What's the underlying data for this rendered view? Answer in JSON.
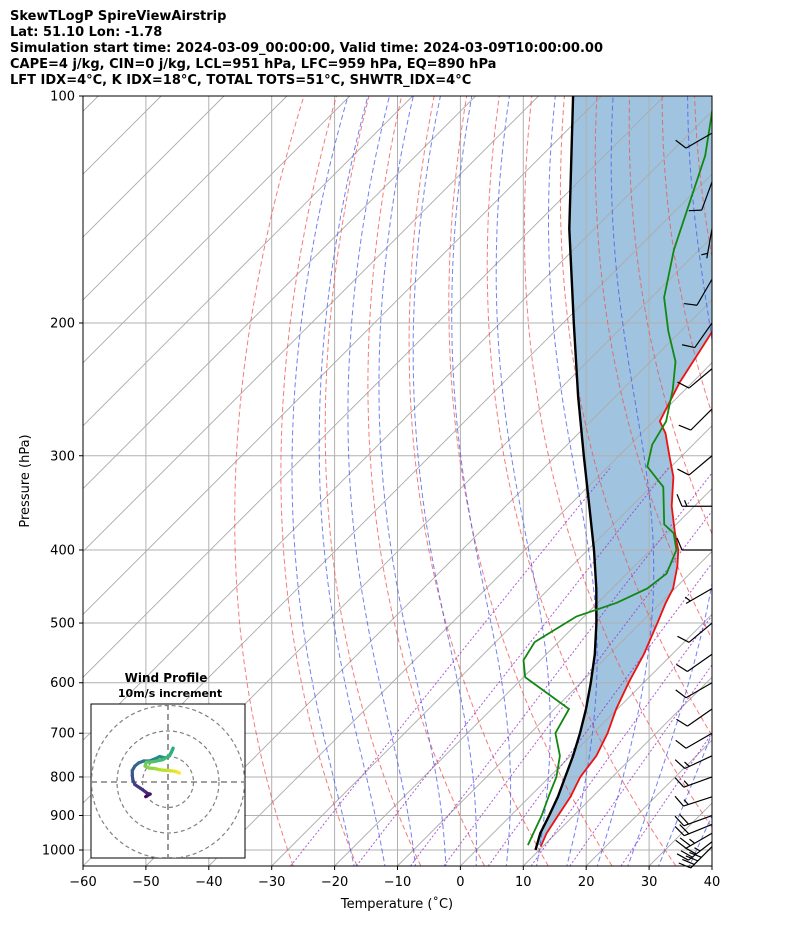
{
  "header": {
    "title_lines": [
      "SkewTLogP SpireViewAirstrip",
      "Lat: 51.10   Lon: -1.78",
      "Simulation start time: 2024-03-09_00:00:00, Valid time: 2024-03-09T10:00:00.00",
      "CAPE=4 j/kg, CIN=0 j/kg, LCL=951 hPa, LFC=959 hPa, EQ=890 hPa",
      "LFT IDX=4°C, K IDX=18°C, TOTAL TOTS=51°C, SHWTR_IDX=4°C"
    ]
  },
  "colors": {
    "temperature": "#ee1111",
    "dewpoint": "#118811",
    "parcel": "#000000",
    "cape_fill": "#a0c4df",
    "dry_adiabat": "#f05050",
    "moist_adiabat": "#4455ee",
    "mixing_ratio": "#9933cc",
    "isotherm": "#aaaaaa",
    "grid": "#b0b0b0",
    "hodo_ring": "#808080"
  },
  "chart_data": [
    {
      "type": "skew-t",
      "xlabel": "Temperature (˚C)",
      "ylabel": "Pressure (hPa)",
      "xlim": [
        -60,
        40
      ],
      "ylim": [
        1050,
        100
      ],
      "y_scale": "log",
      "x_ticks": [
        -60,
        -50,
        -40,
        -30,
        -20,
        -10,
        0,
        10,
        20,
        30,
        40
      ],
      "x_tick_labels": [
        "−60",
        "−50",
        "−40",
        "−30",
        "−20",
        "−10",
        "0",
        "10",
        "20",
        "30",
        "40"
      ],
      "y_ticks": [
        1000,
        900,
        800,
        700,
        600,
        500,
        400,
        300,
        200,
        100
      ],
      "y_tick_labels": [
        "1000",
        "900",
        "800",
        "700",
        "600",
        "500",
        "400",
        "300",
        "200",
        "100"
      ],
      "grid": true,
      "series": [
        {
          "key": "temperature",
          "pressure": [
            990,
            950,
            900,
            850,
            800,
            750,
            700,
            650,
            600,
            550,
            500,
            470,
            450,
            420,
            400,
            380,
            350,
            320,
            300,
            280,
            270,
            240,
            210,
            190,
            170,
            150,
            130,
            115,
            100
          ],
          "temp": [
            9.7,
            8.5,
            7.5,
            6.5,
            4.9,
            4.1,
            2.3,
            -0.2,
            -2.4,
            -4.5,
            -7.3,
            -9.2,
            -10.3,
            -13.2,
            -15.6,
            -18.8,
            -23.6,
            -28.0,
            -32.0,
            -36.2,
            -39.0,
            -42.0,
            -44.5,
            -46.5,
            -48.5,
            -50.5,
            -51.5,
            -52.0,
            -52.0
          ]
        },
        {
          "key": "dewpoint",
          "pressure": [
            985,
            950,
            900,
            850,
            800,
            750,
            700,
            650,
            590,
            560,
            530,
            490,
            470,
            450,
            430,
            400,
            380,
            370,
            330,
            310,
            290,
            270,
            245,
            225,
            205,
            185,
            160,
            120,
            100
          ],
          "temp": [
            7.4,
            6.4,
            4.9,
            3.0,
            1.1,
            -1.7,
            -6.0,
            -7.7,
            -19.7,
            -22.7,
            -23.8,
            -21.2,
            -17.0,
            -14.4,
            -13.7,
            -15.9,
            -19.0,
            -21.9,
            -28.0,
            -33.8,
            -36.5,
            -38.0,
            -42.0,
            -46.0,
            -52.0,
            -58.0,
            -64.0,
            -74.0,
            -82.0
          ]
        },
        {
          "key": "parcel",
          "pressure": [
            1000,
            950,
            900,
            850,
            800,
            750,
            700,
            650,
            600,
            550,
            500,
            450,
            400,
            350,
            300,
            250,
            200,
            150,
            100
          ],
          "temp": [
            9.4,
            7.5,
            6.1,
            4.5,
            2.5,
            0.4,
            -2.1,
            -5.0,
            -8.4,
            -12.3,
            -17.0,
            -22.5,
            -29.0,
            -36.7,
            -45.6,
            -56.0,
            -68.3,
            -84.0,
            -104.5
          ]
        }
      ],
      "wind_barbs": [
        {
          "p": 990,
          "speed": 40,
          "dir": 225
        },
        {
          "p": 975,
          "speed": 35,
          "dir": 232
        },
        {
          "p": 950,
          "speed": 25,
          "dir": 240
        },
        {
          "p": 925,
          "speed": 20,
          "dir": 248
        },
        {
          "p": 900,
          "speed": 20,
          "dir": 250
        },
        {
          "p": 850,
          "speed": 15,
          "dir": 252
        },
        {
          "p": 800,
          "speed": 15,
          "dir": 250
        },
        {
          "p": 750,
          "speed": 15,
          "dir": 245
        },
        {
          "p": 700,
          "speed": 10,
          "dir": 240
        },
        {
          "p": 650,
          "speed": 10,
          "dir": 235
        },
        {
          "p": 600,
          "speed": 10,
          "dir": 240
        },
        {
          "p": 550,
          "speed": 10,
          "dir": 235
        },
        {
          "p": 500,
          "speed": 10,
          "dir": 230
        },
        {
          "p": 450,
          "speed": 5,
          "dir": 240
        },
        {
          "p": 400,
          "speed": 10,
          "dir": 270
        },
        {
          "p": 350,
          "speed": 15,
          "dir": 270
        },
        {
          "p": 300,
          "speed": 10,
          "dir": 230
        },
        {
          "p": 260,
          "speed": 10,
          "dir": 225
        },
        {
          "p": 230,
          "speed": 10,
          "dir": 230
        },
        {
          "p": 200,
          "speed": 10,
          "dir": 215
        },
        {
          "p": 175,
          "speed": 10,
          "dir": 210
        },
        {
          "p": 150,
          "speed": 5,
          "dir": 190
        },
        {
          "p": 130,
          "speed": 10,
          "dir": 200
        },
        {
          "p": 112,
          "speed": 10,
          "dir": 240
        }
      ]
    },
    {
      "type": "hodograph",
      "title": "Wind Profile",
      "subtitle": "10m/s increment",
      "colormap": "viridis",
      "points": [
        [
          -3.5,
          -2.3
        ],
        [
          -3.2,
          -2.1
        ],
        [
          -2.8,
          -1.9
        ],
        [
          -3.2,
          -1.8
        ],
        [
          -3.6,
          -1.5
        ],
        [
          -4.3,
          -1.0
        ],
        [
          -5.2,
          -0.4
        ],
        [
          -5.5,
          0.3
        ],
        [
          -5.6,
          1.0
        ],
        [
          -5.6,
          1.8
        ],
        [
          -5.2,
          2.5
        ],
        [
          -4.6,
          3.0
        ],
        [
          -3.8,
          3.3
        ],
        [
          -2.9,
          3.3
        ],
        [
          -2.1,
          3.6
        ],
        [
          -1.3,
          4.0
        ],
        [
          -0.5,
          3.8
        ],
        [
          0.0,
          3.9
        ],
        [
          0.5,
          4.6
        ],
        [
          0.8,
          5.3
        ],
        [
          0.3,
          4.2
        ],
        [
          -0.8,
          3.5
        ],
        [
          -2.2,
          3.2
        ],
        [
          -3.4,
          3.1
        ],
        [
          -3.6,
          2.5
        ],
        [
          -3.0,
          2.2
        ],
        [
          -2.0,
          2.1
        ],
        [
          -1.2,
          1.9
        ],
        [
          0.0,
          1.8
        ],
        [
          1.0,
          1.7
        ],
        [
          1.6,
          1.5
        ],
        [
          1.8,
          1.4
        ]
      ]
    }
  ]
}
